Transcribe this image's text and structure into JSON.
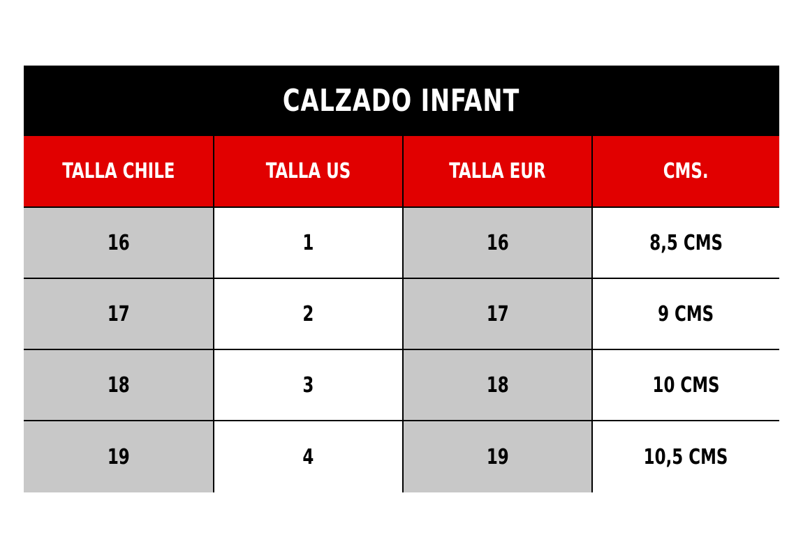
{
  "title": "CALZADO INFANT",
  "headers": [
    "TALLA CHILE",
    "TALLA US",
    "TALLA EUR",
    "CMS."
  ],
  "rows": [
    [
      "16",
      "1",
      "16",
      "8,5 CMS"
    ],
    [
      "17",
      "2",
      "17",
      "9 CMS"
    ],
    [
      "18",
      "3",
      "18",
      "10 CMS"
    ],
    [
      "19",
      "4",
      "19",
      "10,5 CMS"
    ]
  ],
  "colors": {
    "title_bg": "#000000",
    "header_bg": "#e10000",
    "shaded_col_bg": "#c8c8c8"
  }
}
